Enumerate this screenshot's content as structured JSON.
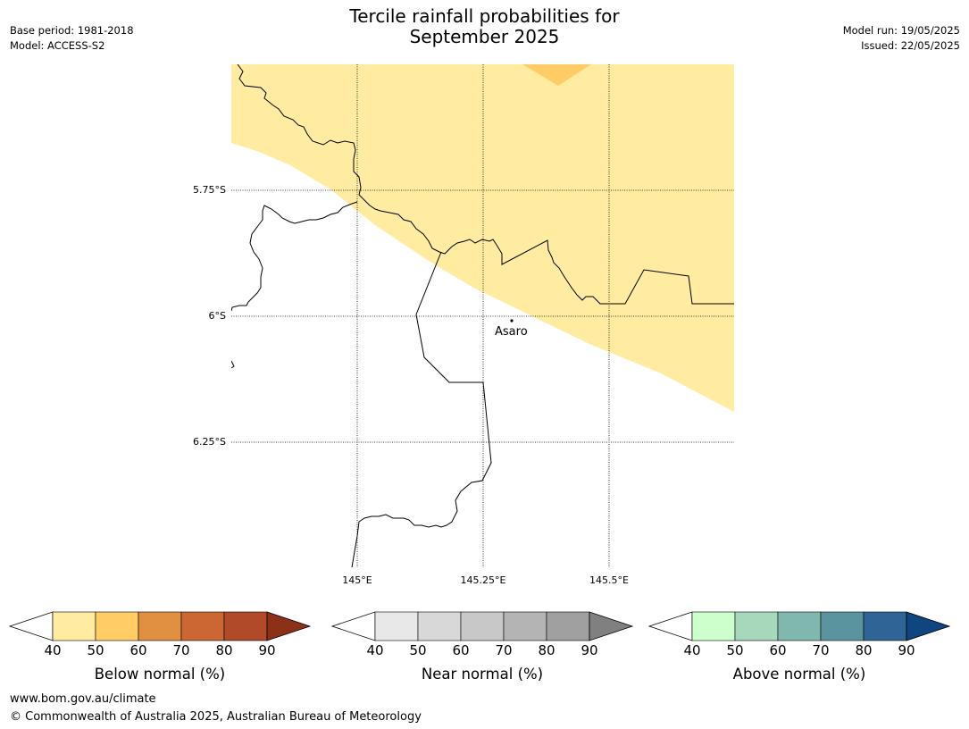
{
  "header": {
    "title_line1": "Tercile rainfall probabilities for",
    "title_line2": "September 2025",
    "base_period": "Base period: 1981-2018",
    "model": "Model: ACCESS-S2",
    "model_run": "Model run: 19/05/2025",
    "issued": "Issued: 22/05/2025"
  },
  "map": {
    "lat_labels": [
      "5.75°S",
      "6°S",
      "6.25°S"
    ],
    "lon_labels": [
      "145°E",
      "145.25°E",
      "145.5°E"
    ],
    "places": [
      {
        "name": "Asaro"
      }
    ],
    "fill_colors": {
      "below_40_50": "#ffeca0",
      "below_50_60": "#ffcc66"
    }
  },
  "colorbars": [
    {
      "label": "Below normal (%)",
      "ticks": [
        "40",
        "50",
        "60",
        "70",
        "80",
        "90"
      ],
      "colors": [
        "#ffffff",
        "#ffeca0",
        "#ffcc66",
        "#e09040",
        "#cc6633",
        "#b04a28",
        "#8c3018"
      ]
    },
    {
      "label": "Near normal (%)",
      "ticks": [
        "40",
        "50",
        "60",
        "70",
        "80",
        "90"
      ],
      "colors": [
        "#ffffff",
        "#e8e8e8",
        "#d8d8d8",
        "#c8c8c8",
        "#b4b4b4",
        "#a0a0a0",
        "#808080"
      ]
    },
    {
      "label": "Above normal (%)",
      "ticks": [
        "40",
        "50",
        "60",
        "70",
        "80",
        "90"
      ],
      "colors": [
        "#ffffff",
        "#ccffcc",
        "#a6d9bb",
        "#80b8ae",
        "#5a949f",
        "#2f6497",
        "#0f4680"
      ]
    }
  ],
  "footer": {
    "url": "www.bom.gov.au/climate",
    "copyright": "© Commonwealth of Australia 2025, Australian Bureau of Meteorology"
  }
}
